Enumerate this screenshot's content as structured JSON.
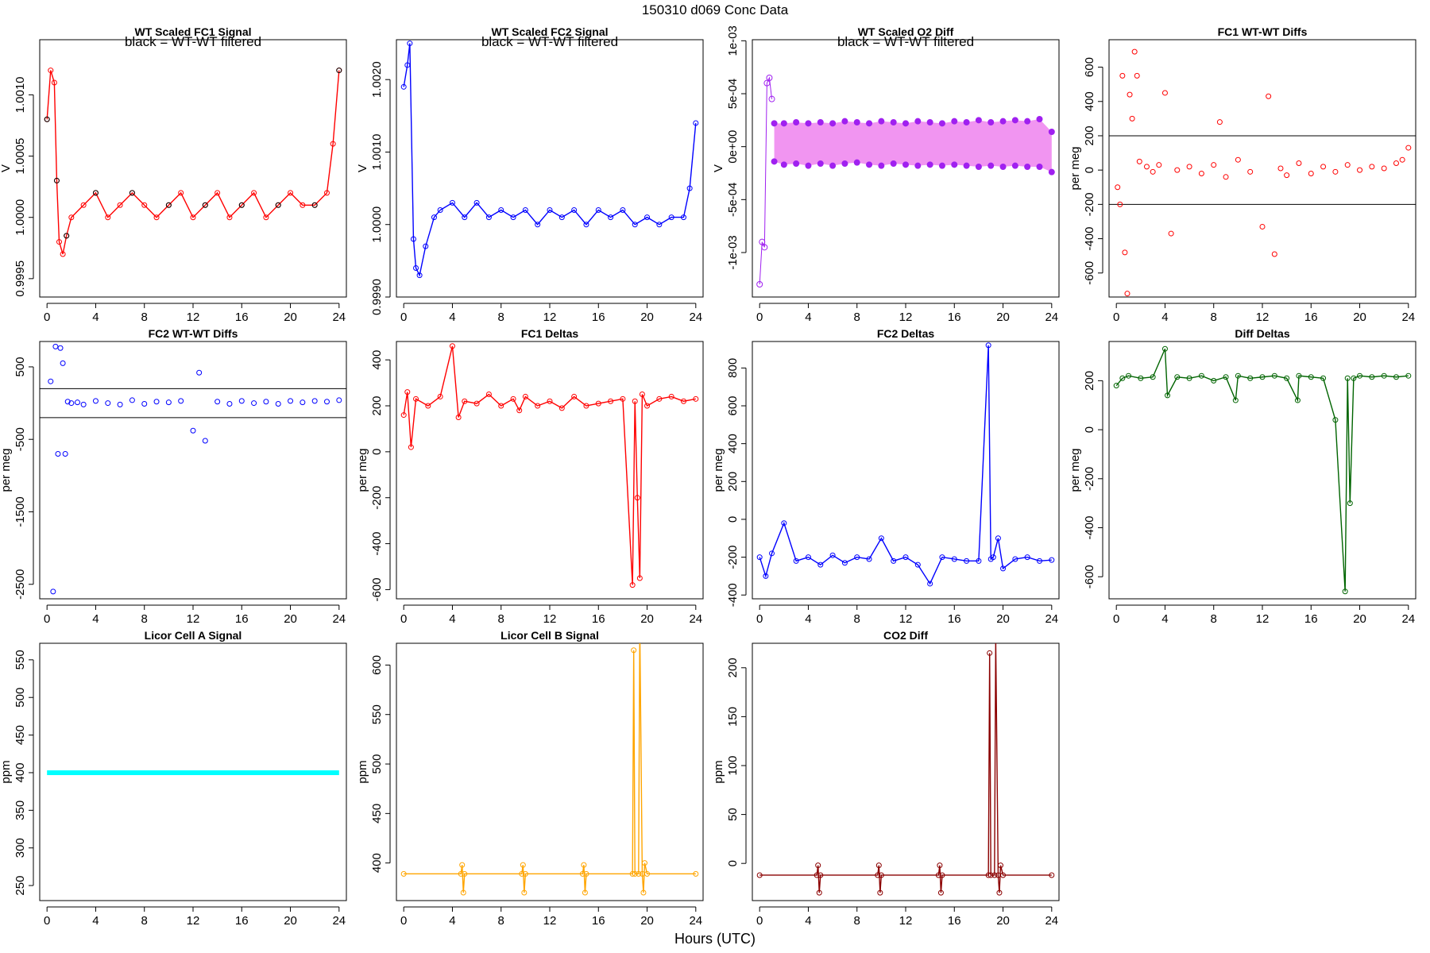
{
  "figure": {
    "title": "150310    d069    Conc Data",
    "xlabel": "Hours (UTC)"
  },
  "chart_data": [
    {
      "id": "fc1-signal",
      "type": "line",
      "title": "WT Scaled FC1 Signal",
      "ylabel": "V",
      "annotation": "black = WT-WT filtered",
      "xlim": [
        -0.6,
        24.6
      ],
      "ylim": [
        0.99935,
        1.00145
      ],
      "xticks": [
        0,
        4,
        8,
        12,
        16,
        20,
        24
      ],
      "yticks": [
        0.9995,
        1.0,
        1.0005,
        1.001
      ],
      "ytick_labels": [
        "0.9995",
        "1.0000",
        "1.0005",
        "1.0010"
      ],
      "colors": {
        "series": "#ff0000",
        "filtered": "#000000"
      },
      "series": [
        {
          "x": [
            0,
            0.3,
            0.6,
            0.8,
            1.0,
            1.3,
            1.6,
            2,
            3,
            4,
            5,
            6,
            7,
            8,
            9,
            10,
            11,
            12,
            13,
            14,
            15,
            16,
            17,
            18,
            19,
            20,
            21,
            22,
            23,
            23.5,
            24
          ],
          "y": [
            1.0008,
            1.0012,
            1.0011,
            1.0003,
            0.9998,
            0.9997,
            0.99985,
            1.0,
            1.0001,
            1.0002,
            1.0,
            1.0001,
            1.0002,
            1.0001,
            1.0,
            1.0001,
            1.0002,
            1.0,
            1.0001,
            1.0002,
            1.0,
            1.0001,
            1.0002,
            1.0,
            1.0001,
            1.0002,
            1.0001,
            1.0001,
            1.0002,
            1.0006,
            1.0012
          ]
        }
      ]
    },
    {
      "id": "fc2-signal",
      "type": "line",
      "title": "WT Scaled FC2 Signal",
      "ylabel": "V",
      "annotation": "black = WT-WT filtered",
      "xlim": [
        -0.6,
        24.6
      ],
      "ylim": [
        0.999,
        1.00255
      ],
      "xticks": [
        0,
        4,
        8,
        12,
        16,
        20,
        24
      ],
      "yticks": [
        0.999,
        1.0,
        1.001,
        1.002
      ],
      "ytick_labels": [
        "0.9990",
        "1.0000",
        "1.0010",
        "1.0020"
      ],
      "colors": {
        "series": "#0000ff"
      },
      "series": [
        {
          "x": [
            0,
            0.3,
            0.5,
            0.8,
            1.0,
            1.3,
            1.8,
            2.5,
            3,
            4,
            5,
            6,
            7,
            8,
            9,
            10,
            11,
            12,
            13,
            14,
            15,
            16,
            17,
            18,
            19,
            20,
            21,
            22,
            23,
            23.5,
            24
          ],
          "y": [
            1.0019,
            1.0022,
            1.0025,
            0.9998,
            0.9994,
            0.9993,
            0.9997,
            1.0001,
            1.0002,
            1.0003,
            1.0001,
            1.0003,
            1.0001,
            1.0002,
            1.0001,
            1.0002,
            1.0,
            1.0002,
            1.0001,
            1.0002,
            1.0,
            1.0002,
            1.0001,
            1.0002,
            1.0,
            1.0001,
            1.0,
            1.0001,
            1.0001,
            1.0005,
            1.0014
          ]
        }
      ]
    },
    {
      "id": "o2-diff",
      "type": "line",
      "title": "WT Scaled O2 Diff",
      "ylabel": "V",
      "annotation": "black = WT-WT filtered",
      "xlim": [
        -0.6,
        24.6
      ],
      "ylim": [
        -0.00142,
        0.00101
      ],
      "xticks": [
        0,
        4,
        8,
        12,
        16,
        20,
        24
      ],
      "yticks": [
        -0.001,
        -0.0005,
        0,
        0.0005,
        0.001
      ],
      "ytick_labels": [
        "-1e-03",
        "-5e-04",
        "0e+00",
        "5e-04",
        "1e-03"
      ],
      "colors": {
        "band": "#ee82ee",
        "points": "#a020f0"
      },
      "upper_points": {
        "x": [
          1.2,
          2,
          3,
          4,
          5,
          6,
          7,
          8,
          9,
          10,
          11,
          12,
          13,
          14,
          15,
          16,
          17,
          18,
          19,
          20,
          21,
          22,
          23,
          24
        ],
        "y": [
          0.00022,
          0.00022,
          0.00023,
          0.00022,
          0.00023,
          0.00022,
          0.00024,
          0.00023,
          0.00022,
          0.00024,
          0.00023,
          0.00022,
          0.00024,
          0.00023,
          0.00022,
          0.00024,
          0.00023,
          0.00025,
          0.00023,
          0.00024,
          0.00025,
          0.00024,
          0.00026,
          0.00014
        ]
      },
      "lower_points": {
        "x": [
          1.2,
          2,
          3,
          4,
          5,
          6,
          7,
          8,
          9,
          10,
          11,
          12,
          13,
          14,
          15,
          16,
          17,
          18,
          19,
          20,
          21,
          22,
          23,
          24
        ],
        "y": [
          -0.00014,
          -0.00017,
          -0.00016,
          -0.00018,
          -0.00016,
          -0.00018,
          -0.00016,
          -0.00015,
          -0.00017,
          -0.00018,
          -0.00016,
          -0.00017,
          -0.00018,
          -0.00017,
          -0.00018,
          -0.00017,
          -0.00018,
          -0.00019,
          -0.00018,
          -0.00019,
          -0.00018,
          -0.00019,
          -0.00019,
          -0.00024
        ]
      },
      "initial_points": {
        "x": [
          0,
          0.2,
          0.4,
          0.6,
          0.8,
          1.0
        ],
        "y": [
          -0.0013,
          -0.0009,
          -0.00095,
          0.0006,
          0.00065,
          0.00045
        ]
      }
    },
    {
      "id": "fc1-wtwt",
      "type": "scatter",
      "title": "FC1 WT-WT Diffs",
      "ylabel": "per meg",
      "xlim": [
        -0.6,
        24.6
      ],
      "ylim": [
        -740,
        760
      ],
      "xticks": [
        0,
        4,
        8,
        12,
        16,
        20,
        24
      ],
      "yticks": [
        -600,
        -400,
        -200,
        0,
        200,
        400,
        600
      ],
      "hlines": [
        200,
        -200
      ],
      "colors": {
        "points": "#ff0000"
      },
      "x": [
        0.1,
        0.3,
        0.5,
        0.7,
        0.9,
        1.1,
        1.3,
        1.5,
        1.7,
        1.9,
        2.5,
        3,
        3.5,
        4,
        4.5,
        5,
        6,
        7,
        8,
        8.5,
        9,
        10,
        11,
        12,
        12.5,
        13,
        13.5,
        14,
        15,
        16,
        17,
        18,
        19,
        20,
        21,
        22,
        23,
        23.5,
        24
      ],
      "y": [
        -100,
        -200,
        550,
        -480,
        -720,
        440,
        300,
        690,
        550,
        50,
        20,
        -10,
        30,
        450,
        -370,
        0,
        20,
        -20,
        30,
        280,
        -40,
        60,
        -10,
        -330,
        430,
        -490,
        10,
        -30,
        40,
        -20,
        20,
        -10,
        30,
        0,
        20,
        10,
        40,
        60,
        130
      ]
    },
    {
      "id": "fc2-wtwt",
      "type": "scatter",
      "title": "FC2 WT-WT Diffs",
      "ylabel": "per meg",
      "xlim": [
        -0.6,
        24.6
      ],
      "ylim": [
        -2700,
        850
      ],
      "xticks": [
        0,
        4,
        8,
        12,
        16,
        20,
        24
      ],
      "yticks": [
        -2500,
        -1500,
        -500,
        500
      ],
      "ytick_labels": [
        "-2500",
        "-1500",
        "-500",
        "500"
      ],
      "hlines": [
        200,
        -200
      ],
      "colors": {
        "points": "#0000ff"
      },
      "x": [
        0.3,
        0.5,
        0.7,
        0.9,
        1.1,
        1.3,
        1.5,
        1.7,
        2,
        2.5,
        3,
        4,
        5,
        6,
        7,
        8,
        9,
        10,
        11,
        12,
        12.5,
        13,
        14,
        15,
        16,
        17,
        18,
        19,
        20,
        21,
        22,
        23,
        24
      ],
      "y": [
        300,
        -2600,
        780,
        -700,
        760,
        550,
        -700,
        20,
        0,
        10,
        -20,
        30,
        0,
        -20,
        40,
        -10,
        20,
        10,
        30,
        -380,
        420,
        -520,
        20,
        -10,
        30,
        0,
        20,
        -10,
        30,
        10,
        30,
        20,
        40
      ]
    },
    {
      "id": "fc1-deltas",
      "type": "line",
      "title": "FC1 Deltas",
      "ylabel": "per meg",
      "xlim": [
        -0.6,
        24.6
      ],
      "ylim": [
        -640,
        480
      ],
      "xticks": [
        0,
        4,
        8,
        12,
        16,
        20,
        24
      ],
      "yticks": [
        -600,
        -400,
        -200,
        0,
        200,
        400
      ],
      "colors": {
        "series": "#ff0000"
      },
      "series": [
        {
          "x": [
            0,
            0.3,
            0.6,
            1,
            2,
            3,
            4,
            4.5,
            5,
            6,
            7,
            8,
            9,
            9.5,
            10,
            11,
            12,
            13,
            14,
            15,
            16,
            17,
            18,
            18.8,
            19,
            19.2,
            19.4,
            19.6,
            20,
            21,
            22,
            23,
            24
          ],
          "y": [
            160,
            260,
            20,
            230,
            200,
            240,
            460,
            150,
            220,
            210,
            250,
            200,
            230,
            180,
            240,
            200,
            220,
            190,
            240,
            200,
            210,
            220,
            230,
            -580,
            220,
            -200,
            -550,
            250,
            200,
            230,
            240,
            220,
            230
          ]
        }
      ]
    },
    {
      "id": "fc2-deltas",
      "type": "line",
      "title": "FC2 Deltas",
      "ylabel": "per meg",
      "xlim": [
        -0.6,
        24.6
      ],
      "ylim": [
        -420,
        940
      ],
      "xticks": [
        0,
        4,
        8,
        12,
        16,
        20,
        24
      ],
      "yticks": [
        -400,
        -200,
        0,
        200,
        400,
        600,
        800
      ],
      "colors": {
        "series": "#0000ff"
      },
      "series": [
        {
          "x": [
            0,
            0.5,
            1,
            2,
            3,
            4,
            5,
            6,
            7,
            8,
            9,
            10,
            11,
            12,
            13,
            14,
            15,
            16,
            17,
            18,
            18.8,
            19,
            19.2,
            19.6,
            20,
            21,
            22,
            23,
            24
          ],
          "y": [
            -200,
            -300,
            -180,
            -20,
            -220,
            -200,
            -240,
            -190,
            -230,
            -200,
            -210,
            -100,
            -220,
            -200,
            -240,
            -340,
            -200,
            -210,
            -220,
            -220,
            920,
            -210,
            -200,
            -100,
            -260,
            -210,
            -200,
            -220,
            -215
          ]
        }
      ]
    },
    {
      "id": "diff-deltas",
      "type": "line",
      "title": "Diff Deltas",
      "ylabel": "per meg",
      "xlim": [
        -0.6,
        24.6
      ],
      "ylim": [
        -690,
        360
      ],
      "xticks": [
        0,
        4,
        8,
        12,
        16,
        20,
        24
      ],
      "yticks": [
        -600,
        -400,
        -200,
        0,
        200
      ],
      "colors": {
        "series": "#006400"
      },
      "series": [
        {
          "x": [
            0,
            0.5,
            1,
            2,
            3,
            4,
            4.2,
            5,
            6,
            7,
            8,
            9,
            9.8,
            10,
            11,
            12,
            13,
            14,
            14.9,
            15,
            16,
            17,
            18,
            18.8,
            19,
            19.2,
            19.5,
            20,
            21,
            22,
            23,
            24
          ],
          "y": [
            180,
            210,
            220,
            210,
            215,
            330,
            140,
            215,
            210,
            220,
            200,
            215,
            120,
            220,
            210,
            215,
            220,
            210,
            120,
            220,
            215,
            210,
            40,
            -660,
            210,
            -300,
            210,
            220,
            215,
            220,
            215,
            220
          ]
        }
      ]
    },
    {
      "id": "licor-a",
      "type": "line",
      "title": "Licor Cell A Signal",
      "ylabel": "ppm",
      "xlim": [
        -0.6,
        24.6
      ],
      "ylim": [
        230,
        572
      ],
      "xticks": [
        0,
        4,
        8,
        12,
        16,
        20,
        24
      ],
      "yticks": [
        250,
        300,
        350,
        400,
        450,
        500,
        550
      ],
      "colors": {
        "series": "#00ffff"
      },
      "series": [
        {
          "x": [
            0,
            24
          ],
          "y": [
            400,
            400
          ]
        }
      ]
    },
    {
      "id": "licor-b",
      "type": "line",
      "title": "Licor Cell B Signal",
      "ylabel": "ppm",
      "xlim": [
        -0.6,
        24.6
      ],
      "ylim": [
        362,
        622
      ],
      "xticks": [
        0,
        4,
        8,
        12,
        16,
        20,
        24
      ],
      "yticks": [
        400,
        450,
        500,
        550,
        600
      ],
      "colors": {
        "series": "#ffa500"
      },
      "series": [
        {
          "x": [
            0,
            4.7,
            4.8,
            4.9,
            5,
            9.7,
            9.8,
            9.9,
            10,
            14.7,
            14.8,
            14.9,
            15,
            18.8,
            18.9,
            19.0,
            19.3,
            19.4,
            19.6,
            19.7,
            19.8,
            20,
            24
          ],
          "y": [
            389,
            389,
            398,
            370,
            389,
            389,
            398,
            370,
            389,
            389,
            398,
            370,
            389,
            389,
            615,
            389,
            389,
            640,
            389,
            370,
            400,
            389,
            389
          ]
        }
      ]
    },
    {
      "id": "co2-diff",
      "type": "line",
      "title": "CO2 Diff",
      "ylabel": "ppm",
      "xlim": [
        -0.6,
        24.6
      ],
      "ylim": [
        -38,
        225
      ],
      "xticks": [
        0,
        4,
        8,
        12,
        16,
        20,
        24
      ],
      "yticks": [
        0,
        50,
        100,
        150,
        200
      ],
      "colors": {
        "series": "#8b0000"
      },
      "series": [
        {
          "x": [
            0,
            4.7,
            4.8,
            4.9,
            5,
            9.7,
            9.8,
            9.9,
            10,
            14.7,
            14.8,
            14.9,
            15,
            18.8,
            18.9,
            19.0,
            19.3,
            19.4,
            19.6,
            19.7,
            19.8,
            20,
            24
          ],
          "y": [
            -12,
            -12,
            -2,
            -30,
            -12,
            -12,
            -2,
            -30,
            -12,
            -12,
            -2,
            -30,
            -12,
            -12,
            215,
            -12,
            -12,
            230,
            -12,
            -30,
            -2,
            -12,
            -12
          ]
        }
      ]
    }
  ]
}
